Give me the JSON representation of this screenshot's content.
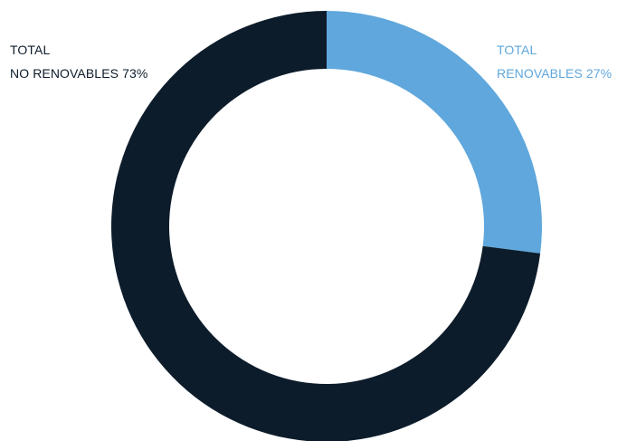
{
  "chart_data": {
    "type": "pie",
    "donut": true,
    "slices": [
      {
        "label": "RENOVABLES",
        "group": "TOTAL",
        "value": 27,
        "value_label": "27%",
        "color": "#5fa7dc"
      },
      {
        "label": "NO RENOVABLES",
        "group": "TOTAL",
        "value": 73,
        "value_label": "73%",
        "color": "#0d1c2b"
      }
    ],
    "legend": [
      {
        "line1": "TOTAL",
        "line2": "RENOVABLES 27%",
        "color": "#5fa7dc",
        "placement": "top-right"
      },
      {
        "line1": "TOTAL",
        "line2": "NO RENOVABLES 73%",
        "color": "#0d1c2b",
        "placement": "top-left"
      }
    ],
    "start_angle": "top",
    "direction": "clockwise"
  }
}
